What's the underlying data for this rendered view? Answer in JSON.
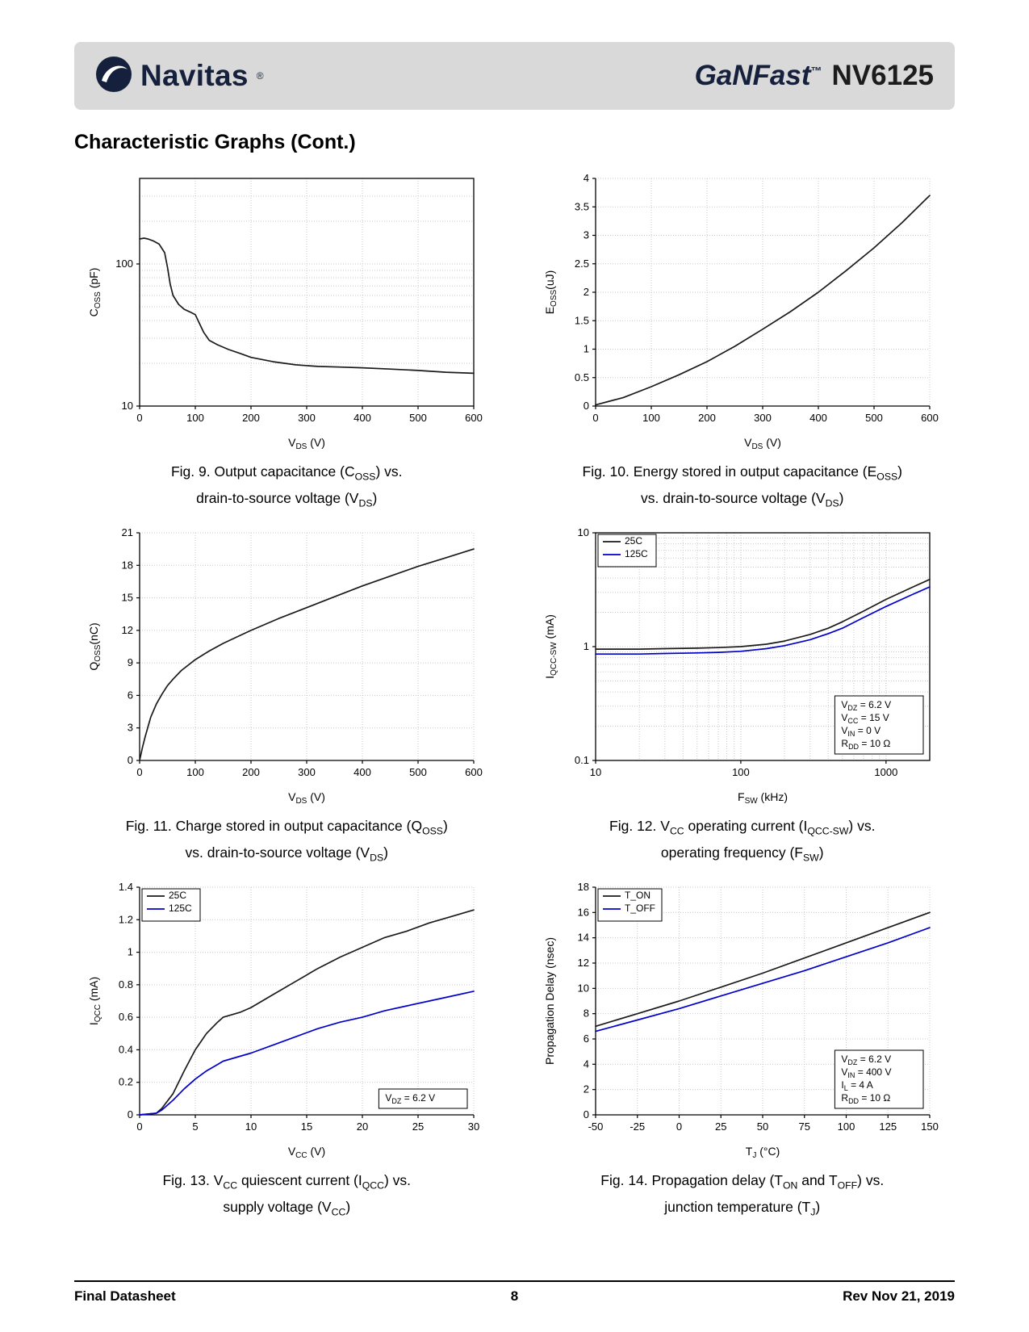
{
  "header": {
    "brand": "Navitas",
    "reg": "®",
    "family": "GaNFast",
    "tm": "™",
    "part": "NV6125"
  },
  "page": {
    "title": "Characteristic Graphs (Cont.)"
  },
  "footer": {
    "left": "Final Datasheet",
    "page_number": "8",
    "right": "Rev Nov 21, 2019"
  },
  "colors": {
    "navy": "#15203c",
    "series_black": "#1a1a1a",
    "series_blue": "#0000cc",
    "header_bg": "#d9d9d9",
    "grid": "#c9c9c9"
  },
  "chart_data": [
    {
      "type": "line",
      "xlabel": "V_{DS} (V)",
      "ylabel": "C_{OSS} (pF)",
      "xscale": "linear",
      "yscale": "log",
      "xlim": [
        0,
        600
      ],
      "ylim": [
        10,
        400
      ],
      "xticks": [
        0,
        100,
        200,
        300,
        400,
        500,
        600
      ],
      "yticks": [
        10,
        100
      ],
      "box": true,
      "series": [
        {
          "name": "",
          "color": "#1a1a1a",
          "points": [
            [
              0,
              150
            ],
            [
              8,
              152
            ],
            [
              15,
              150
            ],
            [
              25,
              145
            ],
            [
              35,
              138
            ],
            [
              45,
              120
            ],
            [
              50,
              95
            ],
            [
              55,
              72
            ],
            [
              60,
              60
            ],
            [
              70,
              52
            ],
            [
              80,
              48
            ],
            [
              90,
              46
            ],
            [
              100,
              44
            ],
            [
              105,
              40
            ],
            [
              115,
              33
            ],
            [
              125,
              29
            ],
            [
              140,
              27
            ],
            [
              160,
              25
            ],
            [
              180,
              23.5
            ],
            [
              200,
              22
            ],
            [
              240,
              20.5
            ],
            [
              280,
              19.5
            ],
            [
              320,
              19
            ],
            [
              360,
              18.8
            ],
            [
              400,
              18.6
            ],
            [
              450,
              18.2
            ],
            [
              500,
              17.8
            ],
            [
              550,
              17.3
            ],
            [
              600,
              17
            ]
          ]
        }
      ],
      "caption": [
        "Fig. 9. Output capacitance (C_{OSS}) vs.",
        "drain-to-source voltage (V_{DS})"
      ]
    },
    {
      "type": "line",
      "xlabel": "V_{DS} (V)",
      "ylabel": "E_{OSS}(uJ)",
      "xscale": "linear",
      "yscale": "linear",
      "xlim": [
        0,
        600
      ],
      "ylim": [
        0,
        4
      ],
      "xticks": [
        0,
        100,
        200,
        300,
        400,
        500,
        600
      ],
      "yticks": [
        0,
        0.5,
        1,
        1.5,
        2,
        2.5,
        3,
        3.5,
        4
      ],
      "box": false,
      "series": [
        {
          "name": "",
          "color": "#1a1a1a",
          "points": [
            [
              0,
              0.02
            ],
            [
              50,
              0.15
            ],
            [
              100,
              0.34
            ],
            [
              150,
              0.55
            ],
            [
              200,
              0.78
            ],
            [
              250,
              1.05
            ],
            [
              300,
              1.35
            ],
            [
              350,
              1.66
            ],
            [
              400,
              2.0
            ],
            [
              450,
              2.38
            ],
            [
              500,
              2.78
            ],
            [
              550,
              3.22
            ],
            [
              600,
              3.7
            ]
          ]
        }
      ],
      "caption": [
        "Fig. 10. Energy stored in output capacitance (E_{OSS})",
        "vs. drain-to-source voltage (V_{DS})"
      ]
    },
    {
      "type": "line",
      "xlabel": "V_{DS} (V)",
      "ylabel": "Q_{OSS}(nC)",
      "xscale": "linear",
      "yscale": "linear",
      "xlim": [
        0,
        600
      ],
      "ylim": [
        0,
        21
      ],
      "xticks": [
        0,
        100,
        200,
        300,
        400,
        500,
        600
      ],
      "yticks": [
        0,
        3,
        6,
        9,
        12,
        15,
        18,
        21
      ],
      "box": false,
      "series": [
        {
          "name": "",
          "color": "#1a1a1a",
          "points": [
            [
              0,
              0
            ],
            [
              5,
              1.2
            ],
            [
              10,
              2.2
            ],
            [
              20,
              4.0
            ],
            [
              30,
              5.2
            ],
            [
              40,
              6.1
            ],
            [
              50,
              6.9
            ],
            [
              60,
              7.5
            ],
            [
              75,
              8.3
            ],
            [
              100,
              9.3
            ],
            [
              125,
              10.1
            ],
            [
              150,
              10.8
            ],
            [
              175,
              11.4
            ],
            [
              200,
              12.0
            ],
            [
              250,
              13.1
            ],
            [
              300,
              14.1
            ],
            [
              350,
              15.1
            ],
            [
              400,
              16.1
            ],
            [
              450,
              17.0
            ],
            [
              500,
              17.9
            ],
            [
              550,
              18.7
            ],
            [
              600,
              19.5
            ]
          ]
        }
      ],
      "caption": [
        "Fig. 11. Charge stored in output capacitance (Q_{OSS})",
        "vs. drain-to-source voltage (V_{DS})"
      ]
    },
    {
      "type": "line",
      "xlabel": "F_{SW} (kHz)",
      "ylabel": "I_{QCC-SW} (mA)",
      "xscale": "log",
      "yscale": "log",
      "xlim": [
        10,
        2000
      ],
      "ylim": [
        0.1,
        10
      ],
      "xticks": [
        10,
        100,
        1000
      ],
      "yticks": [
        0.1,
        1,
        10
      ],
      "box": true,
      "legend": true,
      "annotation": {
        "lines": [
          "V_{DZ} = 6.2 V",
          "V_{CC} = 15 V",
          "V_{IN} = 0 V",
          "R_{DD} = 10 Ω"
        ],
        "pos": "bottom-right"
      },
      "series": [
        {
          "name": "25C",
          "color": "#1a1a1a",
          "points": [
            [
              10,
              0.95
            ],
            [
              20,
              0.95
            ],
            [
              30,
              0.96
            ],
            [
              50,
              0.97
            ],
            [
              70,
              0.98
            ],
            [
              100,
              1.0
            ],
            [
              150,
              1.05
            ],
            [
              200,
              1.12
            ],
            [
              300,
              1.28
            ],
            [
              400,
              1.45
            ],
            [
              500,
              1.65
            ],
            [
              700,
              2.05
            ],
            [
              1000,
              2.6
            ],
            [
              1500,
              3.3
            ],
            [
              2000,
              3.9
            ]
          ]
        },
        {
          "name": "125C",
          "color": "#0000cc",
          "points": [
            [
              10,
              0.86
            ],
            [
              20,
              0.86
            ],
            [
              30,
              0.87
            ],
            [
              50,
              0.88
            ],
            [
              70,
              0.89
            ],
            [
              100,
              0.91
            ],
            [
              150,
              0.96
            ],
            [
              200,
              1.02
            ],
            [
              300,
              1.15
            ],
            [
              400,
              1.3
            ],
            [
              500,
              1.45
            ],
            [
              700,
              1.8
            ],
            [
              1000,
              2.25
            ],
            [
              1500,
              2.85
            ],
            [
              2000,
              3.35
            ]
          ]
        }
      ],
      "caption": [
        "Fig. 12. V_{CC} operating current (I_{QCC-SW}) vs.",
        "operating frequency (F_{SW})"
      ]
    },
    {
      "type": "line",
      "xlabel": "V_{CC} (V)",
      "ylabel": "I_{QCC} (mA)",
      "xscale": "linear",
      "yscale": "linear",
      "xlim": [
        0,
        30
      ],
      "ylim": [
        0,
        1.4
      ],
      "xticks": [
        0,
        5,
        10,
        15,
        20,
        25,
        30
      ],
      "yticks": [
        0,
        0.2,
        0.4,
        0.6,
        0.8,
        1,
        1.2,
        1.4
      ],
      "box": false,
      "legend": true,
      "annotation": {
        "lines": [
          "V_{DZ} = 6.2 V"
        ],
        "pos": "bottom-right"
      },
      "series": [
        {
          "name": "25C",
          "color": "#1a1a1a",
          "points": [
            [
              0,
              0
            ],
            [
              1.5,
              0.01
            ],
            [
              2,
              0.04
            ],
            [
              3,
              0.13
            ],
            [
              4,
              0.27
            ],
            [
              5,
              0.4
            ],
            [
              6,
              0.5
            ],
            [
              7,
              0.57
            ],
            [
              7.5,
              0.6
            ],
            [
              8,
              0.61
            ],
            [
              9,
              0.63
            ],
            [
              10,
              0.66
            ],
            [
              11,
              0.7
            ],
            [
              12,
              0.74
            ],
            [
              14,
              0.82
            ],
            [
              16,
              0.9
            ],
            [
              18,
              0.97
            ],
            [
              20,
              1.03
            ],
            [
              22,
              1.09
            ],
            [
              24,
              1.13
            ],
            [
              26,
              1.18
            ],
            [
              28,
              1.22
            ],
            [
              30,
              1.26
            ]
          ]
        },
        {
          "name": "125C",
          "color": "#0000cc",
          "points": [
            [
              0,
              0
            ],
            [
              1.5,
              0.01
            ],
            [
              2,
              0.03
            ],
            [
              3,
              0.09
            ],
            [
              4,
              0.16
            ],
            [
              5,
              0.22
            ],
            [
              6,
              0.27
            ],
            [
              7,
              0.31
            ],
            [
              7.5,
              0.33
            ],
            [
              8,
              0.34
            ],
            [
              9,
              0.36
            ],
            [
              10,
              0.38
            ],
            [
              12,
              0.43
            ],
            [
              14,
              0.48
            ],
            [
              16,
              0.53
            ],
            [
              18,
              0.57
            ],
            [
              20,
              0.6
            ],
            [
              22,
              0.64
            ],
            [
              24,
              0.67
            ],
            [
              26,
              0.7
            ],
            [
              28,
              0.73
            ],
            [
              30,
              0.76
            ]
          ]
        }
      ],
      "caption": [
        "Fig. 13. V_{CC} quiescent current (I_{QCC}) vs.",
        "supply voltage (V_{CC})"
      ]
    },
    {
      "type": "line",
      "xlabel": "T_{J} (°C)",
      "ylabel": "Propagation Delay (nsec)",
      "xscale": "linear",
      "yscale": "linear",
      "xlim": [
        -50,
        150
      ],
      "ylim": [
        0,
        18
      ],
      "xticks": [
        -50,
        -25,
        0,
        25,
        50,
        75,
        100,
        125,
        150
      ],
      "yticks": [
        0,
        2,
        4,
        6,
        8,
        10,
        12,
        14,
        16,
        18
      ],
      "box": false,
      "legend": true,
      "annotation": {
        "lines": [
          "V_{DZ} = 6.2 V",
          "V_{IN} = 400 V",
          "I_{L} = 4 A",
          "R_{DD} = 10 Ω"
        ],
        "pos": "bottom-right"
      },
      "series": [
        {
          "name": "T_ON",
          "color": "#1a1a1a",
          "points": [
            [
              -50,
              7.0
            ],
            [
              -25,
              8.0
            ],
            [
              0,
              9.0
            ],
            [
              25,
              10.1
            ],
            [
              50,
              11.2
            ],
            [
              75,
              12.4
            ],
            [
              100,
              13.6
            ],
            [
              125,
              14.8
            ],
            [
              150,
              16.0
            ]
          ]
        },
        {
          "name": "T_OFF",
          "color": "#0000cc",
          "points": [
            [
              -50,
              6.6
            ],
            [
              -25,
              7.5
            ],
            [
              0,
              8.4
            ],
            [
              25,
              9.4
            ],
            [
              50,
              10.4
            ],
            [
              75,
              11.4
            ],
            [
              100,
              12.5
            ],
            [
              125,
              13.6
            ],
            [
              150,
              14.8
            ]
          ]
        }
      ],
      "caption": [
        "Fig. 14. Propagation delay (T_{ON} and T_{OFF}) vs.",
        "junction temperature (T_{J})"
      ]
    }
  ]
}
